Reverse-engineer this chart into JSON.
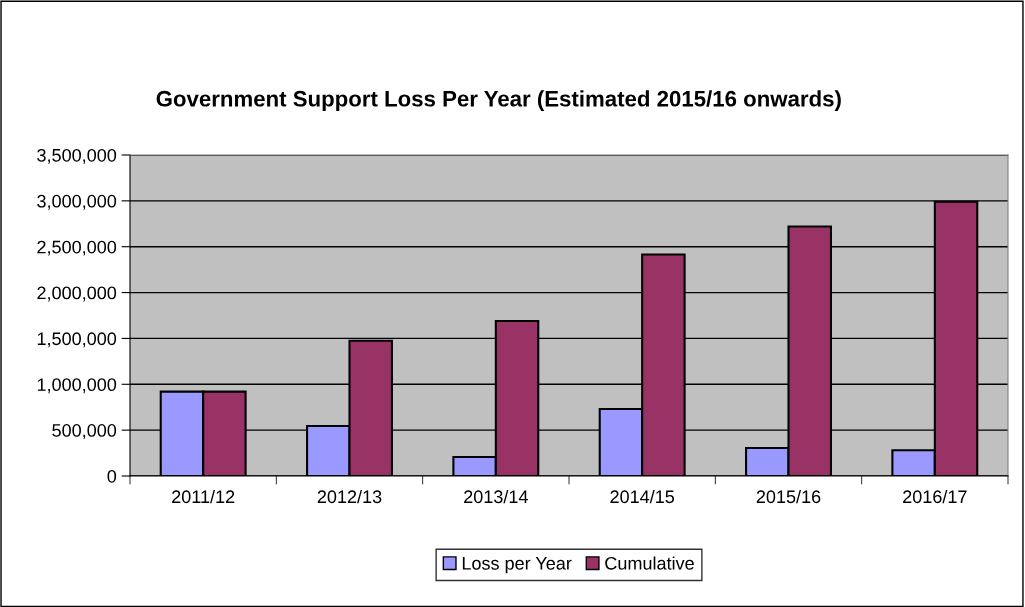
{
  "chart_data": {
    "type": "bar",
    "title": "Government Support Loss Per Year (Estimated 2015/16 onwards)",
    "categories": [
      "2011/12",
      "2012/13",
      "2013/14",
      "2014/15",
      "2015/16",
      "2016/17"
    ],
    "series": [
      {
        "name": "Loss per Year",
        "color": "#9999ff",
        "values": [
          920000,
          545000,
          208000,
          730000,
          305000,
          280000
        ]
      },
      {
        "name": "Cumulative",
        "color": "#993366",
        "values": [
          920000,
          1475000,
          1690000,
          2415000,
          2720000,
          2990000
        ]
      }
    ],
    "ylim": [
      0,
      3500000
    ],
    "yticks": [
      {
        "value": 0,
        "label": "0"
      },
      {
        "value": 500000,
        "label": "500,000"
      },
      {
        "value": 1000000,
        "label": "1,000,000"
      },
      {
        "value": 1500000,
        "label": "1,500,000"
      },
      {
        "value": 2000000,
        "label": "2,000,000"
      },
      {
        "value": 2500000,
        "label": "2,500,000"
      },
      {
        "value": 3000000,
        "label": "3,000,000"
      },
      {
        "value": 3500000,
        "label": "3,500,000"
      }
    ],
    "grid": "y",
    "legend": "bottom"
  }
}
